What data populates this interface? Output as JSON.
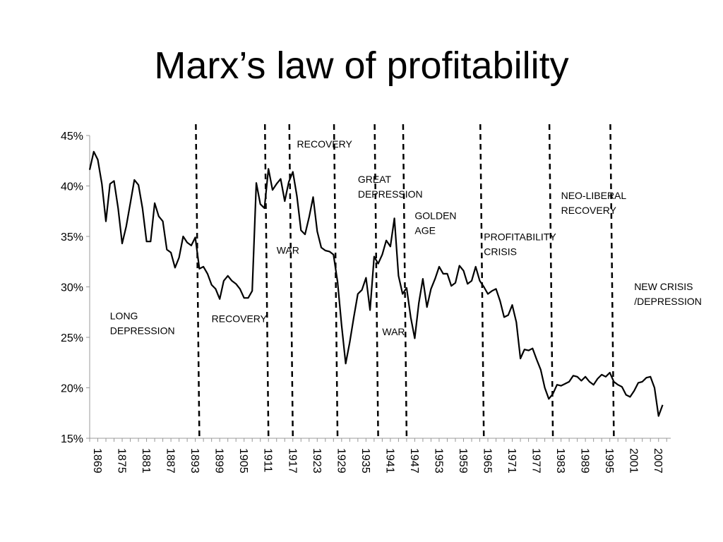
{
  "chart_data": {
    "type": "line",
    "title": "Marx’s law of profitability",
    "xlabel": "",
    "ylabel": "",
    "xlim": [
      1869,
      2012
    ],
    "ylim": [
      0.15,
      0.45
    ],
    "ytick_values": [
      0.15,
      0.2,
      0.25,
      0.3,
      0.35,
      0.4,
      0.45
    ],
    "ytick_labels": [
      "15%",
      "20%",
      "25%",
      "30%",
      "35%",
      "40%",
      "45%"
    ],
    "xtick_values": [
      1869,
      1875,
      1881,
      1887,
      1893,
      1899,
      1905,
      1911,
      1917,
      1923,
      1929,
      1935,
      1941,
      1947,
      1953,
      1959,
      1965,
      1971,
      1977,
      1983,
      1989,
      1995,
      2001,
      2007
    ],
    "xtick_labels": [
      "1869",
      "1875",
      "1881",
      "1887",
      "1893",
      "1899",
      "1905",
      "1911",
      "1917",
      "1923",
      "1929",
      "1935",
      "1941",
      "1947",
      "1953",
      "1959",
      "1965",
      "1971",
      "1977",
      "1983",
      "1989",
      "1995",
      "2001",
      "2007"
    ],
    "grid": false,
    "series": [
      {
        "values": [
          {
            "x": 1869,
            "y": 0.416
          },
          {
            "x": 1870,
            "y": 0.434
          },
          {
            "x": 1871,
            "y": 0.426
          },
          {
            "x": 1872,
            "y": 0.402
          },
          {
            "x": 1873,
            "y": 0.365
          },
          {
            "x": 1874,
            "y": 0.402
          },
          {
            "x": 1875,
            "y": 0.405
          },
          {
            "x": 1876,
            "y": 0.378
          },
          {
            "x": 1877,
            "y": 0.343
          },
          {
            "x": 1878,
            "y": 0.36
          },
          {
            "x": 1879,
            "y": 0.383
          },
          {
            "x": 1880,
            "y": 0.406
          },
          {
            "x": 1881,
            "y": 0.401
          },
          {
            "x": 1882,
            "y": 0.378
          },
          {
            "x": 1883,
            "y": 0.345
          },
          {
            "x": 1884,
            "y": 0.345
          },
          {
            "x": 1885,
            "y": 0.383
          },
          {
            "x": 1886,
            "y": 0.37
          },
          {
            "x": 1887,
            "y": 0.365
          },
          {
            "x": 1888,
            "y": 0.337
          },
          {
            "x": 1889,
            "y": 0.334
          },
          {
            "x": 1890,
            "y": 0.319
          },
          {
            "x": 1891,
            "y": 0.329
          },
          {
            "x": 1892,
            "y": 0.35
          },
          {
            "x": 1893,
            "y": 0.344
          },
          {
            "x": 1894,
            "y": 0.341
          },
          {
            "x": 1895,
            "y": 0.349
          },
          {
            "x": 1896,
            "y": 0.318
          },
          {
            "x": 1897,
            "y": 0.32
          },
          {
            "x": 1898,
            "y": 0.313
          },
          {
            "x": 1899,
            "y": 0.302
          },
          {
            "x": 1900,
            "y": 0.298
          },
          {
            "x": 1901,
            "y": 0.288
          },
          {
            "x": 1902,
            "y": 0.306
          },
          {
            "x": 1903,
            "y": 0.311
          },
          {
            "x": 1904,
            "y": 0.306
          },
          {
            "x": 1905,
            "y": 0.303
          },
          {
            "x": 1906,
            "y": 0.298
          },
          {
            "x": 1907,
            "y": 0.289
          },
          {
            "x": 1908,
            "y": 0.289
          },
          {
            "x": 1909,
            "y": 0.296
          },
          {
            "x": 1910,
            "y": 0.403
          },
          {
            "x": 1911,
            "y": 0.382
          },
          {
            "x": 1912,
            "y": 0.378
          },
          {
            "x": 1913,
            "y": 0.417
          },
          {
            "x": 1914,
            "y": 0.396
          },
          {
            "x": 1915,
            "y": 0.402
          },
          {
            "x": 1916,
            "y": 0.407
          },
          {
            "x": 1917,
            "y": 0.385
          },
          {
            "x": 1918,
            "y": 0.404
          },
          {
            "x": 1919,
            "y": 0.414
          },
          {
            "x": 1920,
            "y": 0.39
          },
          {
            "x": 1921,
            "y": 0.356
          },
          {
            "x": 1922,
            "y": 0.352
          },
          {
            "x": 1923,
            "y": 0.369
          },
          {
            "x": 1924,
            "y": 0.389
          },
          {
            "x": 1925,
            "y": 0.355
          },
          {
            "x": 1926,
            "y": 0.339
          },
          {
            "x": 1927,
            "y": 0.336
          },
          {
            "x": 1928,
            "y": 0.335
          },
          {
            "x": 1929,
            "y": 0.332
          },
          {
            "x": 1930,
            "y": 0.305
          },
          {
            "x": 1931,
            "y": 0.262
          },
          {
            "x": 1932,
            "y": 0.224
          },
          {
            "x": 1933,
            "y": 0.245
          },
          {
            "x": 1934,
            "y": 0.27
          },
          {
            "x": 1935,
            "y": 0.293
          },
          {
            "x": 1936,
            "y": 0.297
          },
          {
            "x": 1937,
            "y": 0.309
          },
          {
            "x": 1938,
            "y": 0.277
          },
          {
            "x": 1939,
            "y": 0.33
          },
          {
            "x": 1940,
            "y": 0.323
          },
          {
            "x": 1941,
            "y": 0.332
          },
          {
            "x": 1942,
            "y": 0.346
          },
          {
            "x": 1943,
            "y": 0.34
          },
          {
            "x": 1944,
            "y": 0.368
          },
          {
            "x": 1945,
            "y": 0.311
          },
          {
            "x": 1946,
            "y": 0.293
          },
          {
            "x": 1947,
            "y": 0.299
          },
          {
            "x": 1948,
            "y": 0.27
          },
          {
            "x": 1949,
            "y": 0.249
          },
          {
            "x": 1950,
            "y": 0.284
          },
          {
            "x": 1951,
            "y": 0.308
          },
          {
            "x": 1952,
            "y": 0.28
          },
          {
            "x": 1953,
            "y": 0.298
          },
          {
            "x": 1954,
            "y": 0.308
          },
          {
            "x": 1955,
            "y": 0.32
          },
          {
            "x": 1956,
            "y": 0.313
          },
          {
            "x": 1957,
            "y": 0.313
          },
          {
            "x": 1958,
            "y": 0.301
          },
          {
            "x": 1959,
            "y": 0.304
          },
          {
            "x": 1960,
            "y": 0.321
          },
          {
            "x": 1961,
            "y": 0.316
          },
          {
            "x": 1962,
            "y": 0.303
          },
          {
            "x": 1963,
            "y": 0.306
          },
          {
            "x": 1964,
            "y": 0.32
          },
          {
            "x": 1965,
            "y": 0.306
          },
          {
            "x": 1966,
            "y": 0.3
          },
          {
            "x": 1967,
            "y": 0.293
          },
          {
            "x": 1968,
            "y": 0.296
          },
          {
            "x": 1969,
            "y": 0.298
          },
          {
            "x": 1970,
            "y": 0.286
          },
          {
            "x": 1971,
            "y": 0.27
          },
          {
            "x": 1972,
            "y": 0.272
          },
          {
            "x": 1973,
            "y": 0.282
          },
          {
            "x": 1974,
            "y": 0.265
          },
          {
            "x": 1975,
            "y": 0.229
          },
          {
            "x": 1976,
            "y": 0.238
          },
          {
            "x": 1977,
            "y": 0.237
          },
          {
            "x": 1978,
            "y": 0.239
          },
          {
            "x": 1979,
            "y": 0.228
          },
          {
            "x": 1980,
            "y": 0.218
          },
          {
            "x": 1981,
            "y": 0.2
          },
          {
            "x": 1982,
            "y": 0.189
          },
          {
            "x": 1983,
            "y": 0.194
          },
          {
            "x": 1984,
            "y": 0.203
          },
          {
            "x": 1985,
            "y": 0.202
          },
          {
            "x": 1986,
            "y": 0.204
          },
          {
            "x": 1987,
            "y": 0.206
          },
          {
            "x": 1988,
            "y": 0.212
          },
          {
            "x": 1989,
            "y": 0.211
          },
          {
            "x": 1990,
            "y": 0.207
          },
          {
            "x": 1991,
            "y": 0.211
          },
          {
            "x": 1992,
            "y": 0.206
          },
          {
            "x": 1993,
            "y": 0.203
          },
          {
            "x": 1994,
            "y": 0.209
          },
          {
            "x": 1995,
            "y": 0.213
          },
          {
            "x": 1996,
            "y": 0.211
          },
          {
            "x": 1997,
            "y": 0.215
          },
          {
            "x": 1998,
            "y": 0.206
          },
          {
            "x": 1999,
            "y": 0.203
          },
          {
            "x": 2000,
            "y": 0.201
          },
          {
            "x": 2001,
            "y": 0.193
          },
          {
            "x": 2002,
            "y": 0.191
          },
          {
            "x": 2003,
            "y": 0.197
          },
          {
            "x": 2004,
            "y": 0.205
          },
          {
            "x": 2005,
            "y": 0.206
          },
          {
            "x": 2006,
            "y": 0.21
          },
          {
            "x": 2007,
            "y": 0.211
          },
          {
            "x": 2008,
            "y": 0.2
          },
          {
            "x": 2009,
            "y": 0.172
          },
          {
            "x": 2010,
            "y": 0.183
          }
        ],
        "color": "#000000"
      }
    ],
    "period_dividers": [
      1896,
      1913,
      1919,
      1930,
      1940,
      1947,
      1966,
      1983,
      1998
    ],
    "annotations": [
      {
        "lines": [
          "LONG",
          "DEPRESSION"
        ],
        "x": 1874,
        "y": 0.268
      },
      {
        "lines": [
          "RECOVERY"
        ],
        "x": 1899,
        "y": 0.265
      },
      {
        "lines": [
          "WAR"
        ],
        "x": 1915,
        "y": 0.333
      },
      {
        "lines": [
          "RECOVERY"
        ],
        "x": 1920,
        "y": 0.438
      },
      {
        "lines": [
          "GREAT",
          "DEPRESSION"
        ],
        "x": 1935,
        "y": 0.403
      },
      {
        "lines": [
          "WAR"
        ],
        "x": 1941,
        "y": 0.252
      },
      {
        "lines": [
          "GOLDEN",
          "AGE"
        ],
        "x": 1949,
        "y": 0.367
      },
      {
        "lines": [
          "PROFITABILITY",
          "CRISIS"
        ],
        "x": 1966,
        "y": 0.346
      },
      {
        "lines": [
          "NEO-LIBERAL",
          "RECOVERY"
        ],
        "x": 1985,
        "y": 0.387
      },
      {
        "lines": [
          "NEW CRISIS",
          "/DEPRESSION"
        ],
        "x": 2003,
        "y": 0.297
      }
    ]
  }
}
